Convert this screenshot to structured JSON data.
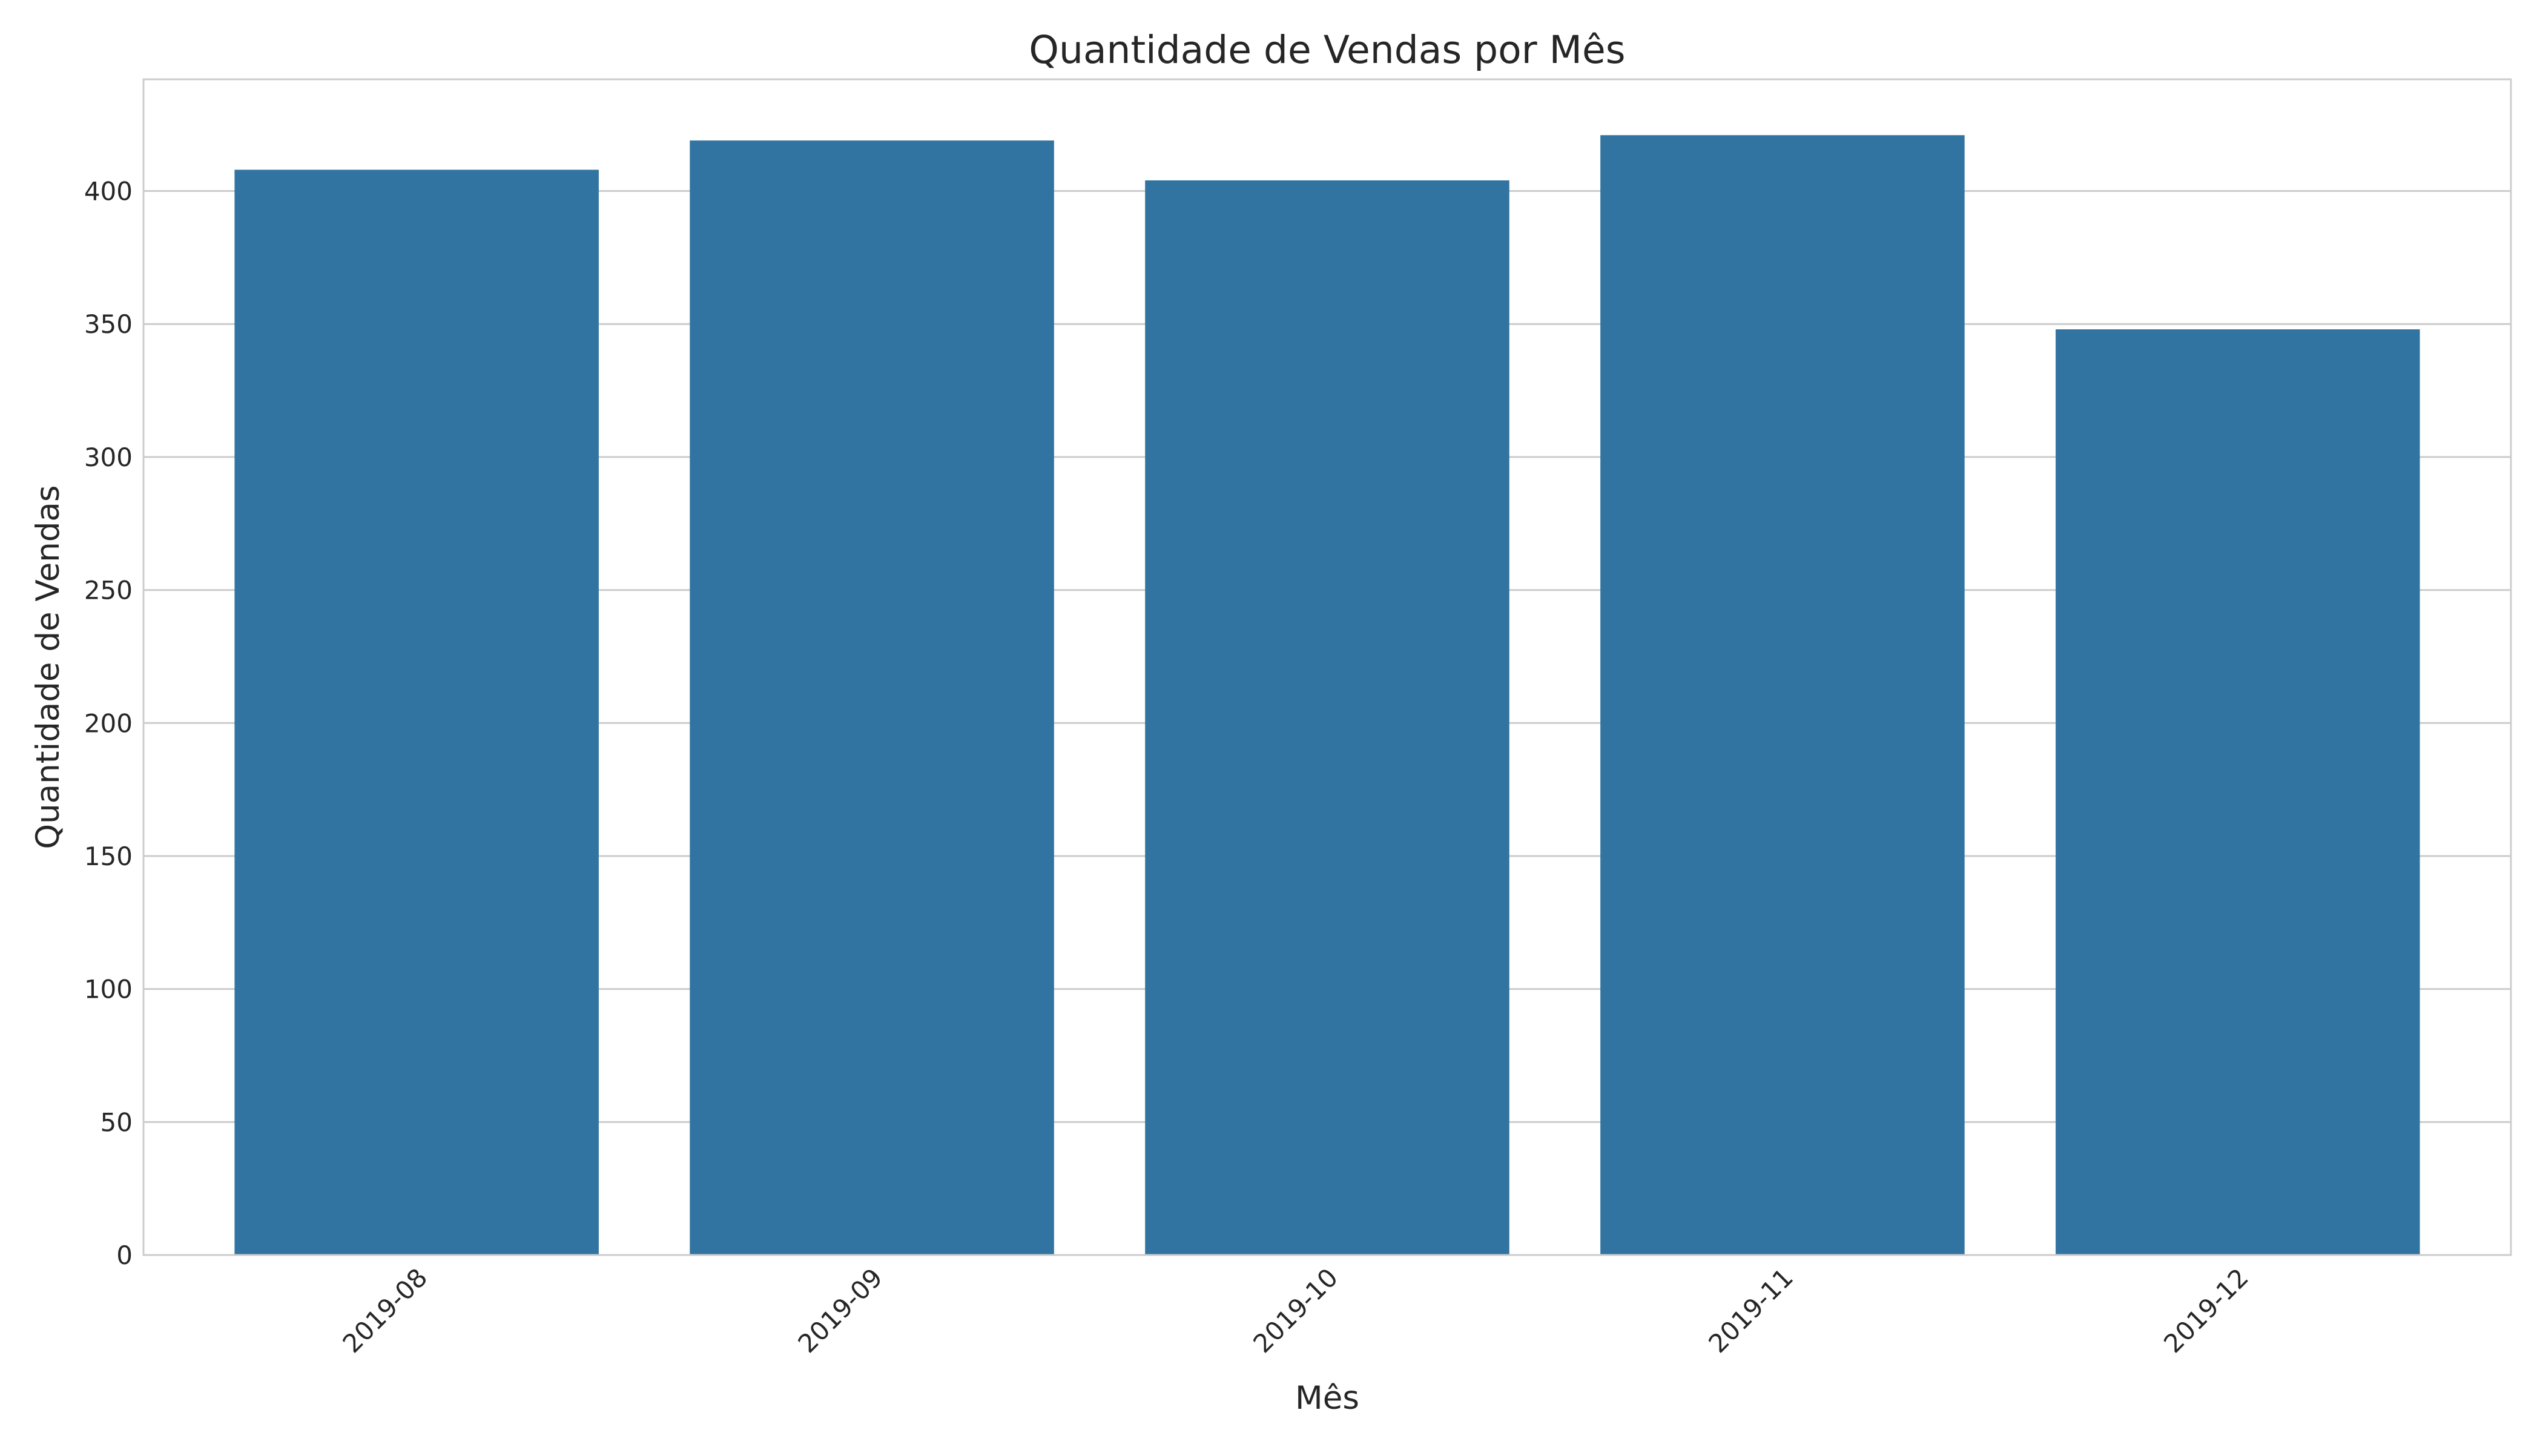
{
  "chart_data": {
    "type": "bar",
    "title": "Quantidade de Vendas por Mês",
    "xlabel": "Mês",
    "ylabel": "Quantidade de Vendas",
    "categories": [
      "2019-08",
      "2019-09",
      "2019-10",
      "2019-11",
      "2019-12"
    ],
    "values": [
      408,
      419,
      404,
      421,
      348
    ],
    "ylim": [
      0,
      442
    ],
    "yticks": [
      "0",
      "50",
      "100",
      "150",
      "200",
      "250",
      "300",
      "350",
      "400"
    ],
    "grid": "horizontal",
    "bar_color": "#3274a1",
    "grid_color": "#cccccc",
    "axes_edge_color": "#cccccc",
    "xtick_rotation": "45 degrees"
  }
}
